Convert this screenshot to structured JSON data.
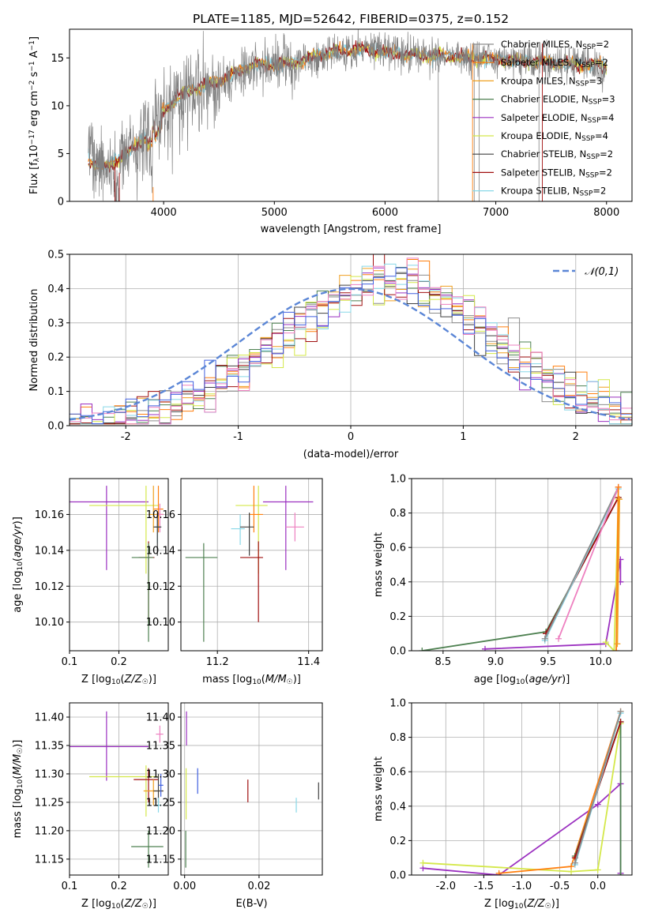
{
  "figure": {
    "title": "PLATE=1185, MJD=52642, FIBERID=0375, z=0.152"
  },
  "colors": {
    "chabrier_miles": "#8c8c8c",
    "salpeter_miles": "#ff7f0e",
    "kroupa_miles": "#f0a020",
    "chabrier_elodie": "#4d8050",
    "salpeter_elodie": "#9b30c0",
    "kroupa_elodie": "#d4e84a",
    "chabrier_stelib": "#404040",
    "salpeter_stelib": "#a01010",
    "kroupa_stelib": "#88d8e8",
    "pink": "#ee80c0",
    "blue": "#4060e0",
    "normal_curve": "#5b86d6"
  },
  "chart_data": [
    {
      "id": "spectrum",
      "type": "line",
      "title": "PLATE=1185, MJD=52642, FIBERID=0375, z=0.152",
      "xlabel": "wavelength [Angstrom, rest frame]",
      "ylabel": "Flux [f_λ 10^-17 erg cm^-2 s^-1 A^-1]",
      "xlim": [
        3150,
        8230
      ],
      "ylim": [
        0,
        18
      ],
      "xticks": [
        4000,
        5000,
        6000,
        7000,
        8000
      ],
      "yticks": [
        0,
        5,
        10,
        15
      ],
      "grid": false,
      "legend_position": "top-right",
      "legend": [
        "Chabrier MILES, N_SSP=2",
        "Salpeter MILES, N_SSP=2",
        "Kroupa MILES, N_SSP=3",
        "Chabrier ELODIE, N_SSP=3",
        "Salpeter ELODIE, N_SSP=4",
        "Kroupa ELODIE, N_SSP=4",
        "Chabrier STELIB, N_SSP=2",
        "Salpeter STELIB, N_SSP=2",
        "Kroupa STELIB, N_SSP=2"
      ],
      "continuum": {
        "x": [
          3320,
          3500,
          3700,
          3900,
          4000,
          4200,
          4500,
          4800,
          5000,
          5200,
          5500,
          5800,
          6000,
          6200,
          6500,
          6800,
          7000,
          7200,
          7500,
          8000
        ],
        "y": [
          4.2,
          3.6,
          5.3,
          7.5,
          9.6,
          11.5,
          12.6,
          14.3,
          14.3,
          14.5,
          15.6,
          15.9,
          15.6,
          15.3,
          15.2,
          15.0,
          14.9,
          14.7,
          14.5,
          14.2
        ]
      }
    },
    {
      "id": "residuals",
      "type": "histogram",
      "xlabel": "(data-model)/error",
      "ylabel": "Normed distribution",
      "xlim": [
        -2.5,
        2.5
      ],
      "ylim": [
        0,
        0.5
      ],
      "xticks": [
        -2,
        -1,
        0,
        1,
        2
      ],
      "yticks": [
        0.0,
        0.1,
        0.2,
        0.3,
        0.4,
        0.5
      ],
      "grid": true,
      "legend_position": "top-right",
      "normal_label": "𝒩(0,1)",
      "bin_width": 0.1
    },
    {
      "id": "age_vs_Z",
      "type": "scatter",
      "xlabel": "Z [log10(Z/Z☉)]",
      "ylabel": "age [log10(age/yr)]",
      "xlim": [
        0.1,
        0.3
      ],
      "ylim": [
        10.084,
        10.18
      ],
      "xticks": [
        0.1,
        0.2
      ],
      "yticks": [
        10.1,
        10.12,
        10.14,
        10.16
      ],
      "grid": true,
      "points": [
        {
          "series": "salpeter_elodie",
          "x": 0.175,
          "y": 10.167,
          "xlo": 0.09,
          "xhi": 0.26,
          "ylo": 10.129,
          "yhi": 10.176
        },
        {
          "series": "kroupa_elodie",
          "x": 0.255,
          "y": 10.165,
          "xlo": 0.14,
          "xhi": 0.28,
          "ylo": 10.127,
          "yhi": 10.176
        },
        {
          "series": "salpeter_miles",
          "x": 0.28,
          "y": 10.163,
          "xlo": 0.27,
          "xhi": 0.29,
          "ylo": 10.15,
          "yhi": 10.176
        },
        {
          "series": "kroupa_miles",
          "x": 0.27,
          "y": 10.16,
          "xlo": 0.26,
          "xhi": 0.29,
          "ylo": 10.15,
          "yhi": 10.176
        },
        {
          "series": "pink",
          "x": 0.283,
          "y": 10.16,
          "xlo": 0.28,
          "xhi": 0.29,
          "ylo": 10.15,
          "yhi": 10.166
        },
        {
          "series": "kroupa_stelib",
          "x": 0.278,
          "y": 10.153,
          "xlo": 0.273,
          "xhi": 0.285,
          "ylo": 10.144,
          "yhi": 10.16
        },
        {
          "series": "chabrier_stelib",
          "x": 0.278,
          "y": 10.153,
          "xlo": 0.27,
          "xhi": 0.286,
          "ylo": 10.137,
          "yhi": 10.161
        },
        {
          "series": "salpeter_stelib",
          "x": 0.26,
          "y": 10.136,
          "xlo": 0.24,
          "xhi": 0.272,
          "ylo": 10.1,
          "yhi": 10.145
        },
        {
          "series": "chabrier_elodie",
          "x": 0.26,
          "y": 10.136,
          "xlo": 0.226,
          "xhi": 0.27,
          "ylo": 10.089,
          "yhi": 10.144
        }
      ]
    },
    {
      "id": "age_vs_mass",
      "type": "scatter",
      "xlabel": "mass [log10(M/M☉)]",
      "ylabel": "",
      "xlim": [
        11.12,
        11.43
      ],
      "ylim": [
        10.084,
        10.18
      ],
      "xticks": [
        11.2,
        11.4
      ],
      "yticks": [
        10.1,
        10.12,
        10.14,
        10.16
      ],
      "grid": true,
      "points": [
        {
          "series": "salpeter_elodie",
          "x": 11.35,
          "y": 10.167,
          "xlo": 11.3,
          "xhi": 11.41,
          "ylo": 10.129,
          "yhi": 10.176
        },
        {
          "series": "kroupa_elodie",
          "x": 11.29,
          "y": 10.165,
          "xlo": 11.24,
          "xhi": 11.31,
          "ylo": 10.127,
          "yhi": 10.176
        },
        {
          "series": "salpeter_miles",
          "x": 11.28,
          "y": 10.16,
          "xlo": 11.27,
          "xhi": 11.3,
          "ylo": 10.15,
          "yhi": 10.176
        },
        {
          "series": "pink",
          "x": 11.37,
          "y": 10.153,
          "xlo": 11.35,
          "xhi": 11.39,
          "ylo": 10.145,
          "yhi": 10.161
        },
        {
          "series": "kroupa_stelib",
          "x": 11.25,
          "y": 10.152,
          "xlo": 11.23,
          "xhi": 11.26,
          "ylo": 10.143,
          "yhi": 10.16
        },
        {
          "series": "chabrier_stelib",
          "x": 11.27,
          "y": 10.153,
          "xlo": 11.25,
          "xhi": 11.28,
          "ylo": 10.137,
          "yhi": 10.161
        },
        {
          "series": "salpeter_stelib",
          "x": 11.29,
          "y": 10.136,
          "xlo": 11.25,
          "xhi": 11.3,
          "ylo": 10.1,
          "yhi": 10.145
        },
        {
          "series": "chabrier_elodie",
          "x": 11.17,
          "y": 10.136,
          "xlo": 11.13,
          "xhi": 11.2,
          "ylo": 10.089,
          "yhi": 10.144
        }
      ]
    },
    {
      "id": "weight_vs_age",
      "type": "line",
      "xlabel": "age [log10(age/yr)]",
      "ylabel": "mass weight",
      "xlim": [
        8.2,
        10.3
      ],
      "ylim": [
        0,
        1.0
      ],
      "xticks": [
        8.5,
        9.0,
        9.5,
        10.0
      ],
      "yticks": [
        0.0,
        0.2,
        0.4,
        0.6,
        0.8,
        1.0
      ],
      "grid": true,
      "series": [
        {
          "series": "chabrier_elodie",
          "x": [
            8.3,
            9.48,
            10.17
          ],
          "y": [
            0.0,
            0.11,
            0.89
          ]
        },
        {
          "series": "salpeter_stelib",
          "x": [
            9.48,
            10.17
          ],
          "y": [
            0.1,
            0.89
          ]
        },
        {
          "series": "kroupa_stelib",
          "x": [
            9.47,
            10.17
          ],
          "y": [
            0.06,
            0.94
          ]
        },
        {
          "series": "chabrier_miles",
          "x": [
            9.47,
            10.17
          ],
          "y": [
            0.07,
            0.95
          ]
        },
        {
          "series": "pink",
          "x": [
            9.6,
            10.17
          ],
          "y": [
            0.07,
            0.95
          ]
        },
        {
          "series": "salpeter_elodie",
          "x": [
            8.9,
            10.05,
            10.19,
            10.19
          ],
          "y": [
            0.01,
            0.04,
            0.53,
            0.4
          ]
        },
        {
          "series": "kroupa_elodie",
          "x": [
            10.05,
            10.13,
            10.17
          ],
          "y": [
            0.05,
            0.0,
            0.88
          ]
        },
        {
          "series": "salpeter_miles",
          "x": [
            10.15,
            10.17
          ],
          "y": [
            0.0,
            0.95
          ]
        },
        {
          "series": "kroupa_miles",
          "x": [
            10.16,
            10.18
          ],
          "y": [
            0.04,
            0.88
          ]
        }
      ]
    },
    {
      "id": "mass_vs_Z",
      "type": "scatter",
      "xlabel": "Z [log10(Z/Z☉)]",
      "ylabel": "mass [log10(M/M☉)]",
      "xlim": [
        0.1,
        0.3
      ],
      "ylim": [
        11.122,
        11.425
      ],
      "xticks": [
        0.1,
        0.2
      ],
      "yticks": [
        11.15,
        11.2,
        11.25,
        11.3,
        11.35,
        11.4
      ],
      "grid": true,
      "points": [
        {
          "series": "salpeter_elodie",
          "x": 0.175,
          "y": 11.348,
          "xlo": 0.09,
          "xhi": 0.26,
          "ylo": 11.288,
          "yhi": 11.41
        },
        {
          "series": "kroupa_elodie",
          "x": 0.255,
          "y": 11.295,
          "xlo": 0.14,
          "xhi": 0.28,
          "ylo": 11.225,
          "yhi": 11.315
        },
        {
          "series": "salpeter_stelib",
          "x": 0.26,
          "y": 11.29,
          "xlo": 0.23,
          "xhi": 0.28,
          "ylo": 11.25,
          "yhi": 11.31
        },
        {
          "series": "pink",
          "x": 0.283,
          "y": 11.37,
          "xlo": 0.275,
          "xhi": 0.29,
          "ylo": 11.355,
          "yhi": 11.385
        },
        {
          "series": "kroupa_miles",
          "x": 0.27,
          "y": 11.27,
          "xlo": 0.25,
          "xhi": 0.29,
          "ylo": 11.245,
          "yhi": 11.29
        },
        {
          "series": "chabrier_stelib",
          "x": 0.28,
          "y": 11.27,
          "xlo": 0.27,
          "xhi": 0.29,
          "ylo": 11.25,
          "yhi": 11.3
        },
        {
          "series": "blue",
          "x": 0.285,
          "y": 11.28,
          "xlo": 0.28,
          "xhi": 0.29,
          "ylo": 11.26,
          "yhi": 11.3
        },
        {
          "series": "kroupa_stelib",
          "x": 0.28,
          "y": 11.245,
          "xlo": 0.275,
          "xhi": 0.285,
          "ylo": 11.232,
          "yhi": 11.258
        },
        {
          "series": "chabrier_elodie",
          "x": 0.26,
          "y": 11.172,
          "xlo": 0.225,
          "xhi": 0.29,
          "ylo": 11.135,
          "yhi": 11.2
        }
      ]
    },
    {
      "id": "mass_vs_ebv",
      "type": "scatter",
      "xlabel": "E(B-V)",
      "ylabel": "",
      "xlim": [
        -0.001,
        0.037
      ],
      "ylim": [
        11.122,
        11.425
      ],
      "xticks": [
        0.0,
        0.02
      ],
      "yticks": [
        11.15,
        11.2,
        11.25,
        11.3,
        11.35,
        11.4
      ],
      "grid": true,
      "points": [
        {
          "series": "salpeter_elodie",
          "x": 0.0005,
          "y": 11.38,
          "ylo": 11.35,
          "yhi": 11.41
        },
        {
          "series": "kroupa_elodie",
          "x": 0.0004,
          "y": 11.28,
          "ylo": 11.22,
          "yhi": 11.31
        },
        {
          "series": "chabrier_elodie",
          "x": 0.0003,
          "y": 11.17,
          "ylo": 11.135,
          "yhi": 11.2
        },
        {
          "series": "blue",
          "x": 0.0035,
          "y": 11.285,
          "ylo": 11.265,
          "yhi": 11.31
        },
        {
          "series": "salpeter_stelib",
          "x": 0.017,
          "y": 11.27,
          "ylo": 11.25,
          "yhi": 11.29
        },
        {
          "series": "kroupa_stelib",
          "x": 0.03,
          "y": 11.245,
          "ylo": 11.232,
          "yhi": 11.258
        },
        {
          "series": "chabrier_stelib",
          "x": 0.036,
          "y": 11.27,
          "ylo": 11.255,
          "yhi": 11.285
        }
      ]
    },
    {
      "id": "weight_vs_Z",
      "type": "line",
      "xlabel": "Z [log10(Z/Z☉)]",
      "ylabel": "mass weight",
      "xlim": [
        -2.45,
        0.45
      ],
      "ylim": [
        0,
        1.0
      ],
      "xticks": [
        -2.0,
        -1.5,
        -1.0,
        -0.5,
        0.0
      ],
      "yticks": [
        0.0,
        0.2,
        0.4,
        0.6,
        0.8,
        1.0
      ],
      "grid": true,
      "series": [
        {
          "series": "salpeter_elodie",
          "x": [
            -2.3,
            -1.3,
            0.0,
            0.3,
            0.3
          ],
          "y": [
            0.04,
            0.0,
            0.41,
            0.53,
            0.01
          ]
        },
        {
          "series": "kroupa_elodie",
          "x": [
            -2.3,
            -0.35,
            0.0,
            0.3
          ],
          "y": [
            0.07,
            0.02,
            0.03,
            0.88
          ]
        },
        {
          "series": "salpeter_miles",
          "x": [
            -1.3,
            -0.35,
            0.3
          ],
          "y": [
            0.01,
            0.05,
            0.95
          ]
        },
        {
          "series": "chabrier_elodie",
          "x": [
            -0.3,
            0.3,
            0.3
          ],
          "y": [
            0.11,
            0.89,
            0.0
          ]
        },
        {
          "series": "salpeter_stelib",
          "x": [
            -0.3,
            0.3
          ],
          "y": [
            0.1,
            0.89
          ]
        },
        {
          "series": "kroupa_stelib",
          "x": [
            -0.3,
            0.3
          ],
          "y": [
            0.06,
            0.94
          ]
        },
        {
          "series": "chabrier_miles",
          "x": [
            -0.3,
            0.3
          ],
          "y": [
            0.07,
            0.95
          ]
        }
      ]
    }
  ]
}
